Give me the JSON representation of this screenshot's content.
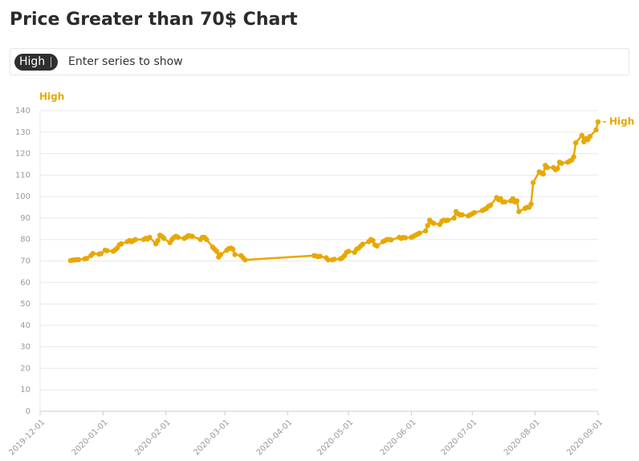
{
  "ui": {
    "placeholder": "Enter series to show"
  },
  "chart_data": {
    "type": "line",
    "title": "Price Greater than 70$ Chart",
    "y_label": "High",
    "x": [
      "2019-12-16",
      "2019-12-17",
      "2019-12-18",
      "2019-12-19",
      "2019-12-20",
      "2019-12-23",
      "2019-12-24",
      "2019-12-26",
      "2019-12-27",
      "2019-12-30",
      "2019-12-31",
      "2020-01-02",
      "2020-01-03",
      "2020-01-06",
      "2020-01-07",
      "2020-01-08",
      "2020-01-09",
      "2020-01-10",
      "2020-01-13",
      "2020-01-14",
      "2020-01-15",
      "2020-01-16",
      "2020-01-17",
      "2020-01-21",
      "2020-01-22",
      "2020-01-23",
      "2020-01-24",
      "2020-01-27",
      "2020-01-28",
      "2020-01-29",
      "2020-01-30",
      "2020-01-31",
      "2020-02-03",
      "2020-02-04",
      "2020-02-05",
      "2020-02-06",
      "2020-02-07",
      "2020-02-10",
      "2020-02-11",
      "2020-02-12",
      "2020-02-13",
      "2020-02-14",
      "2020-02-18",
      "2020-02-19",
      "2020-02-20",
      "2020-02-21",
      "2020-02-24",
      "2020-02-25",
      "2020-02-26",
      "2020-02-27",
      "2020-02-28",
      "2020-03-02",
      "2020-03-03",
      "2020-03-04",
      "2020-03-05",
      "2020-03-06",
      "2020-03-09",
      "2020-03-10",
      "2020-03-11",
      "2020-04-14",
      "2020-04-15",
      "2020-04-16",
      "2020-04-17",
      "2020-04-20",
      "2020-04-21",
      "2020-04-23",
      "2020-04-24",
      "2020-04-27",
      "2020-04-28",
      "2020-04-29",
      "2020-04-30",
      "2020-05-01",
      "2020-05-04",
      "2020-05-05",
      "2020-05-06",
      "2020-05-07",
      "2020-05-08",
      "2020-05-11",
      "2020-05-12",
      "2020-05-13",
      "2020-05-14",
      "2020-05-15",
      "2020-05-18",
      "2020-05-19",
      "2020-05-20",
      "2020-05-21",
      "2020-05-22",
      "2020-05-26",
      "2020-05-27",
      "2020-05-28",
      "2020-05-29",
      "2020-06-01",
      "2020-06-02",
      "2020-06-03",
      "2020-06-04",
      "2020-06-05",
      "2020-06-08",
      "2020-06-09",
      "2020-06-10",
      "2020-06-11",
      "2020-06-12",
      "2020-06-15",
      "2020-06-16",
      "2020-06-17",
      "2020-06-18",
      "2020-06-19",
      "2020-06-22",
      "2020-06-23",
      "2020-06-24",
      "2020-06-25",
      "2020-06-26",
      "2020-06-29",
      "2020-06-30",
      "2020-07-01",
      "2020-07-02",
      "2020-07-06",
      "2020-07-07",
      "2020-07-08",
      "2020-07-09",
      "2020-07-10",
      "2020-07-13",
      "2020-07-14",
      "2020-07-15",
      "2020-07-16",
      "2020-07-17",
      "2020-07-20",
      "2020-07-21",
      "2020-07-22",
      "2020-07-23",
      "2020-07-24",
      "2020-07-27",
      "2020-07-28",
      "2020-07-29",
      "2020-07-30",
      "2020-07-31",
      "2020-08-03",
      "2020-08-04",
      "2020-08-05",
      "2020-08-06",
      "2020-08-07",
      "2020-08-10",
      "2020-08-11",
      "2020-08-12",
      "2020-08-13",
      "2020-08-14",
      "2020-08-17",
      "2020-08-18",
      "2020-08-19",
      "2020-08-20",
      "2020-08-21",
      "2020-08-24",
      "2020-08-25",
      "2020-08-26",
      "2020-08-27",
      "2020-08-28",
      "2020-08-31",
      "2020-09-01"
    ],
    "series": [
      {
        "name": "High",
        "color": "#e8a800",
        "values": [
          70.2,
          70.4,
          70.5,
          70.6,
          70.6,
          71.0,
          71.2,
          72.5,
          73.5,
          73.2,
          73.4,
          75.0,
          74.8,
          74.5,
          75.2,
          76.0,
          77.5,
          78.0,
          79.0,
          79.5,
          79.0,
          79.5,
          80.0,
          80.0,
          80.5,
          80.2,
          81.0,
          78.0,
          79.5,
          82.0,
          81.5,
          80.5,
          78.5,
          80.0,
          81.0,
          81.5,
          81.0,
          80.5,
          81.0,
          81.8,
          81.6,
          81.5,
          80.0,
          81.0,
          81.0,
          80.0,
          76.5,
          75.5,
          74.5,
          71.8,
          73.0,
          75.0,
          75.8,
          76.0,
          75.5,
          73.0,
          72.5,
          71.5,
          70.5,
          72.5,
          72.3,
          72.0,
          72.2,
          71.5,
          70.5,
          70.5,
          70.8,
          71.0,
          71.5,
          72.5,
          74.0,
          74.5,
          74.0,
          75.5,
          76.0,
          77.0,
          77.8,
          79.0,
          80.0,
          79.5,
          77.5,
          77.0,
          79.0,
          79.5,
          80.0,
          80.0,
          79.8,
          81.0,
          80.5,
          81.0,
          80.8,
          81.0,
          81.5,
          82.0,
          82.5,
          83.0,
          84.0,
          86.5,
          89.0,
          88.0,
          87.5,
          87.0,
          88.5,
          89.0,
          88.8,
          89.0,
          90.0,
          93.0,
          92.0,
          91.5,
          91.5,
          91.0,
          91.5,
          92.0,
          92.5,
          93.5,
          94.0,
          94.5,
          95.5,
          96.0,
          99.5,
          98.5,
          99.0,
          97.5,
          97.5,
          98.0,
          99.0,
          97.5,
          98.0,
          93.0,
          94.5,
          95.0,
          95.0,
          96.5,
          106.5,
          111.5,
          111.0,
          110.5,
          114.5,
          113.5,
          113.5,
          112.5,
          113.0,
          116.0,
          115.5,
          116.0,
          116.5,
          117.0,
          118.5,
          125.0,
          128.5,
          125.5,
          127.0,
          126.5,
          128.0,
          131.0,
          134.8
        ]
      }
    ],
    "xlim": [
      "2019-12-01",
      "2020-09-01"
    ],
    "xticks": [
      "2019-12-01",
      "2020-01-01",
      "2020-02-01",
      "2020-03-01",
      "2020-04-01",
      "2020-05-01",
      "2020-06-01",
      "2020-07-01",
      "2020-08-01",
      "2020-09-01"
    ],
    "ylim": [
      0,
      140
    ],
    "yticks": [
      0,
      10,
      20,
      30,
      40,
      50,
      60,
      70,
      80,
      90,
      100,
      110,
      120,
      130,
      140
    ],
    "grid": true
  }
}
